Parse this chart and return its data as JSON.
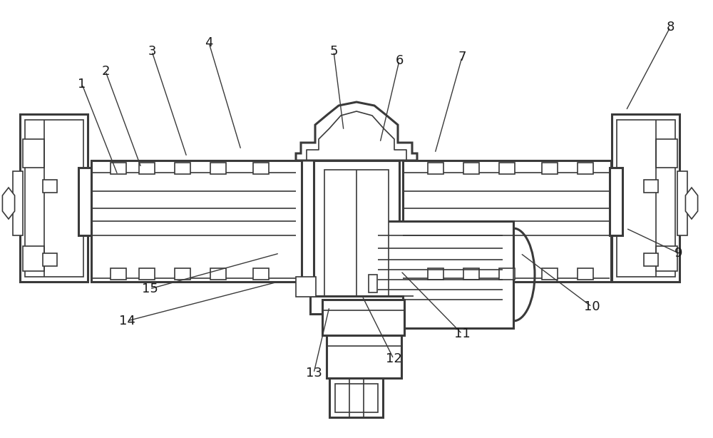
{
  "bg_color": "#ffffff",
  "lc": "#3a3a3a",
  "lw": 1.2,
  "tlw": 2.2,
  "figsize": [
    10.0,
    6.14
  ],
  "dpi": 100,
  "leaders": [
    [
      "1",
      115,
      118,
      165,
      245
    ],
    [
      "2",
      148,
      100,
      198,
      235
    ],
    [
      "3",
      213,
      72,
      262,
      220
    ],
    [
      "4",
      293,
      60,
      338,
      210
    ],
    [
      "5",
      468,
      72,
      482,
      183
    ],
    [
      "6",
      560,
      85,
      533,
      200
    ],
    [
      "7",
      648,
      80,
      610,
      215
    ],
    [
      "8",
      940,
      38,
      878,
      155
    ],
    [
      "9",
      952,
      355,
      878,
      320
    ],
    [
      "10",
      830,
      430,
      730,
      355
    ],
    [
      "11",
      648,
      468,
      562,
      380
    ],
    [
      "12",
      552,
      503,
      508,
      415
    ],
    [
      "13",
      440,
      523,
      462,
      430
    ],
    [
      "14",
      178,
      450,
      390,
      395
    ],
    [
      "15",
      210,
      405,
      392,
      355
    ]
  ]
}
